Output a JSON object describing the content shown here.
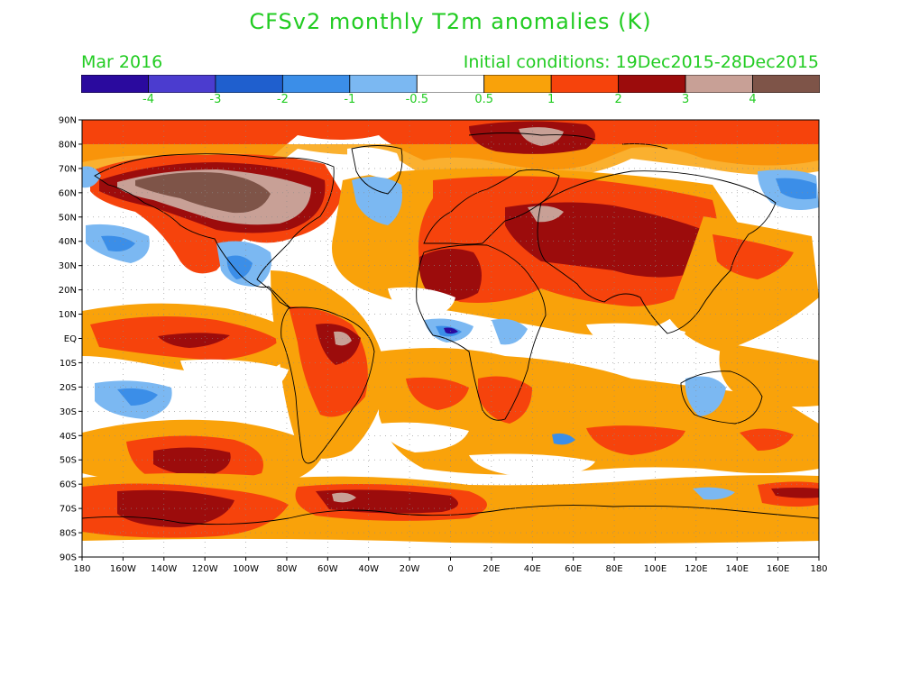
{
  "title": "CFSv2 monthly T2m anomalies (K)",
  "valid_month": "Mar 2016",
  "initial_conditions": "Initial conditions: 19Dec2015-28Dec2015",
  "colorbar": {
    "colors": [
      "#2a0a9e",
      "#4b3ccf",
      "#1f5fce",
      "#3b8ee8",
      "#7bb8f2",
      "#ffffff",
      "#f9a20a",
      "#f6430c",
      "#9c0c0c",
      "#c8a096",
      "#7e5448"
    ],
    "tick_labels": [
      "-4",
      "-3",
      "-2",
      "-1",
      "-0.5",
      "0.5",
      "1",
      "2",
      "3",
      "4"
    ]
  },
  "map": {
    "lat_labels": [
      "90N",
      "80N",
      "70N",
      "60N",
      "50N",
      "40N",
      "30N",
      "20N",
      "10N",
      "EQ",
      "10S",
      "20S",
      "30S",
      "40S",
      "50S",
      "60S",
      "70S",
      "80S",
      "90S"
    ],
    "lon_labels": [
      "180",
      "160W",
      "140W",
      "120W",
      "100W",
      "80W",
      "60W",
      "40W",
      "20W",
      "0",
      "20E",
      "40E",
      "60E",
      "80E",
      "100E",
      "120E",
      "140E",
      "160E",
      "180"
    ],
    "colors": {
      "orange": "#f9a20a",
      "red": "#f6430c",
      "darkred": "#9c0c0c",
      "lightbrown": "#c8a096",
      "darkbrown": "#7e5448",
      "lightblue": "#7bb8f2",
      "blue": "#3b8ee8",
      "navy": "#2a0a9e"
    }
  }
}
